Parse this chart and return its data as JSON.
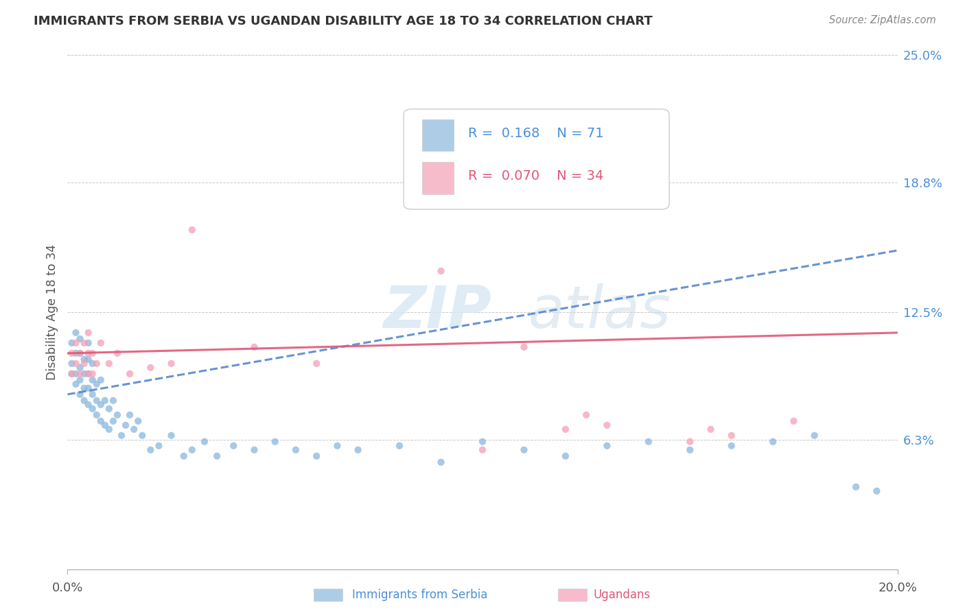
{
  "title": "IMMIGRANTS FROM SERBIA VS UGANDAN DISABILITY AGE 18 TO 34 CORRELATION CHART",
  "source_text": "Source: ZipAtlas.com",
  "ylabel": "Disability Age 18 to 34",
  "xlim": [
    0.0,
    0.2
  ],
  "ylim": [
    0.0,
    0.25
  ],
  "xtick_vals": [
    0.0,
    0.2
  ],
  "xtick_labels": [
    "0.0%",
    "20.0%"
  ],
  "ytick_labels_right": [
    "6.3%",
    "12.5%",
    "18.8%",
    "25.0%"
  ],
  "ytick_vals_right": [
    0.063,
    0.125,
    0.188,
    0.25
  ],
  "watermark_zip": "ZIP",
  "watermark_atlas": "atlas",
  "serbia_color": "#8ab8de",
  "uganda_color": "#f4a0b5",
  "serbia_line_color": "#5588cc",
  "uganda_line_color": "#e05878",
  "legend_serbia_R": "0.168",
  "legend_serbia_N": "71",
  "legend_uganda_R": "0.070",
  "legend_uganda_N": "34",
  "serbia_line_start_y": 0.085,
  "serbia_line_end_y": 0.155,
  "uganda_line_start_y": 0.105,
  "uganda_line_end_y": 0.115,
  "serbia_scatter_x": [
    0.001,
    0.001,
    0.001,
    0.002,
    0.002,
    0.002,
    0.002,
    0.003,
    0.003,
    0.003,
    0.003,
    0.003,
    0.004,
    0.004,
    0.004,
    0.004,
    0.005,
    0.005,
    0.005,
    0.005,
    0.005,
    0.006,
    0.006,
    0.006,
    0.006,
    0.007,
    0.007,
    0.007,
    0.008,
    0.008,
    0.008,
    0.009,
    0.009,
    0.01,
    0.01,
    0.011,
    0.011,
    0.012,
    0.013,
    0.014,
    0.015,
    0.016,
    0.017,
    0.018,
    0.02,
    0.022,
    0.025,
    0.028,
    0.03,
    0.033,
    0.036,
    0.04,
    0.045,
    0.05,
    0.055,
    0.06,
    0.065,
    0.07,
    0.08,
    0.09,
    0.1,
    0.11,
    0.12,
    0.13,
    0.14,
    0.15,
    0.16,
    0.17,
    0.18,
    0.19,
    0.195
  ],
  "serbia_scatter_y": [
    0.095,
    0.1,
    0.11,
    0.09,
    0.095,
    0.105,
    0.115,
    0.085,
    0.092,
    0.098,
    0.105,
    0.112,
    0.082,
    0.088,
    0.095,
    0.102,
    0.08,
    0.088,
    0.095,
    0.102,
    0.11,
    0.078,
    0.085,
    0.092,
    0.1,
    0.075,
    0.082,
    0.09,
    0.072,
    0.08,
    0.092,
    0.07,
    0.082,
    0.068,
    0.078,
    0.072,
    0.082,
    0.075,
    0.065,
    0.07,
    0.075,
    0.068,
    0.072,
    0.065,
    0.058,
    0.06,
    0.065,
    0.055,
    0.058,
    0.062,
    0.055,
    0.06,
    0.058,
    0.062,
    0.058,
    0.055,
    0.06,
    0.058,
    0.06,
    0.052,
    0.062,
    0.058,
    0.055,
    0.06,
    0.062,
    0.058,
    0.06,
    0.062,
    0.065,
    0.04,
    0.038
  ],
  "uganda_scatter_x": [
    0.001,
    0.001,
    0.002,
    0.002,
    0.003,
    0.003,
    0.004,
    0.004,
    0.005,
    0.005,
    0.005,
    0.006,
    0.006,
    0.007,
    0.008,
    0.01,
    0.012,
    0.015,
    0.02,
    0.025,
    0.03,
    0.045,
    0.06,
    0.085,
    0.09,
    0.1,
    0.11,
    0.12,
    0.125,
    0.13,
    0.15,
    0.155,
    0.16,
    0.175
  ],
  "uganda_scatter_y": [
    0.095,
    0.105,
    0.1,
    0.11,
    0.095,
    0.105,
    0.1,
    0.11,
    0.095,
    0.105,
    0.115,
    0.095,
    0.105,
    0.1,
    0.11,
    0.1,
    0.105,
    0.095,
    0.098,
    0.1,
    0.165,
    0.108,
    0.1,
    0.195,
    0.145,
    0.058,
    0.108,
    0.068,
    0.075,
    0.07,
    0.062,
    0.068,
    0.065,
    0.072
  ]
}
